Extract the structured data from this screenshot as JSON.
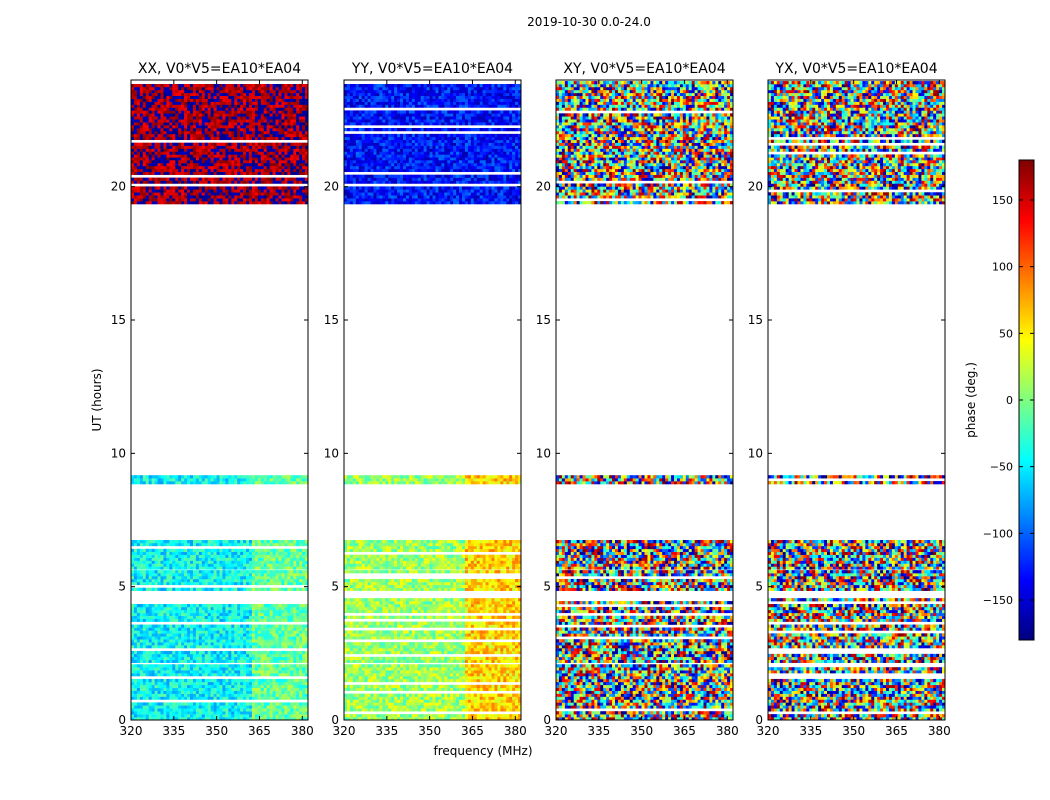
{
  "figure": {
    "suptitle": "2019-10-30 0.0-24.0",
    "xlabel": "frequency (MHz)",
    "ylabel": "UT (hours)"
  },
  "colorbar": {
    "label": "phase (deg.)",
    "range": [
      -180,
      180
    ],
    "ticks": [
      -150,
      -100,
      -50,
      0,
      50,
      100,
      150
    ],
    "tick_labels": [
      "−150",
      "−100",
      "−50",
      "0",
      "50",
      "100",
      "150"
    ],
    "colormap": "jet",
    "stops": [
      "#00007f",
      "#0000ff",
      "#007fff",
      "#00ffff",
      "#7fff7f",
      "#ffff00",
      "#ff7f00",
      "#ff0000",
      "#7f0000"
    ]
  },
  "chart_data": {
    "type": "heatmap",
    "description_note": "",
    "xlim": [
      320,
      382
    ],
    "ylim": [
      0,
      24
    ],
    "xticks": [
      320,
      335,
      350,
      365,
      380
    ],
    "yticks": [
      0,
      5,
      10,
      15,
      20
    ],
    "coverage_hours": [
      [
        0.0,
        2.05
      ],
      [
        2.15,
        4.55
      ],
      [
        4.85,
        5.55
      ],
      [
        5.65,
        6.75
      ],
      [
        8.85,
        9.15
      ],
      [
        19.35,
        21.0
      ],
      [
        21.1,
        23.9
      ]
    ],
    "panels": [
      {
        "title": "XX, V0*V5=EA10*EA04",
        "polarization": "XX",
        "mean_phase_low_band": -45,
        "mean_phase_high_band": -10,
        "mean_phase_night": 170,
        "spread": 35
      },
      {
        "title": "YY, V0*V5=EA10*EA04",
        "polarization": "YY",
        "mean_phase_low_band": 10,
        "mean_phase_high_band": 60,
        "mean_phase_night": -130,
        "spread": 35
      },
      {
        "title": "XY, V0*V5=EA10*EA04",
        "polarization": "XY",
        "mean_phase_low_band": 0,
        "mean_phase_high_band": 0,
        "mean_phase_night": 150,
        "spread": 180
      },
      {
        "title": "YX, V0*V5=EA10*EA04",
        "polarization": "YX",
        "mean_phase_low_band": 0,
        "mean_phase_high_band": 0,
        "mean_phase_night": 40,
        "spread": 180
      }
    ]
  }
}
